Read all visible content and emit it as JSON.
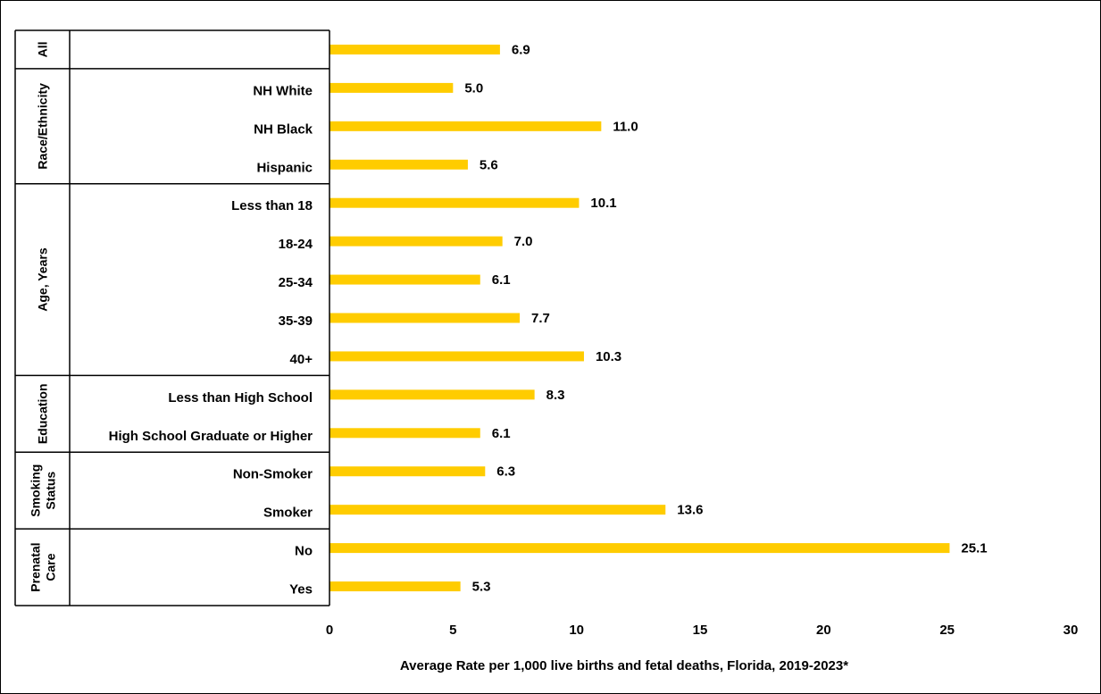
{
  "chart_data": {
    "type": "bar",
    "orientation": "horizontal",
    "color": "#FFCC00",
    "xlabel": "Average Rate per 1,000 live births and fetal deaths, Florida, 2019-2023*",
    "xlim": [
      0,
      30
    ],
    "xticks": [
      "0",
      "5",
      "10",
      "15",
      "20",
      "25",
      "30"
    ],
    "grid": false,
    "groups": [
      {
        "name": "All",
        "categories": [
          ""
        ],
        "values": [
          6.9
        ],
        "labels": [
          "6.9"
        ]
      },
      {
        "name": "Race/Ethnicity",
        "categories": [
          "NH White",
          "NH Black",
          "Hispanic"
        ],
        "values": [
          5.0,
          11.0,
          5.6
        ],
        "labels": [
          "5.0",
          "11.0",
          "5.6"
        ]
      },
      {
        "name": "Age, Years",
        "categories": [
          "Less than 18",
          "18-24",
          "25-34",
          "35-39",
          "40+"
        ],
        "values": [
          10.1,
          7.0,
          6.1,
          7.7,
          10.3
        ],
        "labels": [
          "10.1",
          "7.0",
          "6.1",
          "7.7",
          "10.3"
        ]
      },
      {
        "name": "Education",
        "categories": [
          "Less than High School",
          "High School Graduate or Higher"
        ],
        "values": [
          8.3,
          6.1
        ],
        "labels": [
          "8.3",
          "6.1"
        ]
      },
      {
        "name": "Smoking Status",
        "name_lines": [
          "Smoking",
          "Status"
        ],
        "categories": [
          "Non-Smoker",
          "Smoker"
        ],
        "values": [
          6.3,
          13.6
        ],
        "labels": [
          "6.3",
          "13.6"
        ]
      },
      {
        "name": "Prenatal Care",
        "name_lines": [
          "Prenatal",
          "Care"
        ],
        "categories": [
          "No",
          "Yes"
        ],
        "values": [
          25.1,
          5.3
        ],
        "labels": [
          "25.1",
          "5.3"
        ]
      }
    ]
  }
}
